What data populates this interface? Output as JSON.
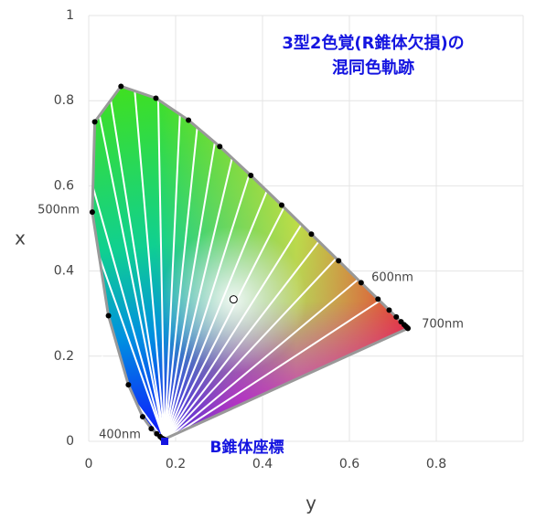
{
  "chart_data": {
    "type": "chromaticity",
    "title_lines": [
      "3型2色覚(R錐体欠損)の",
      "混同色軌跡"
    ],
    "x_label": "y",
    "y_label": "x",
    "xlim": [
      0,
      1
    ],
    "xticks": [
      0,
      0.2,
      0.4,
      0.6,
      0.8
    ],
    "ylim": [
      0,
      1
    ],
    "yticks": [
      0,
      0.2,
      0.4,
      0.6,
      0.8,
      1
    ],
    "grid": true,
    "locus": {
      "color": "#999999",
      "dot_color": "#000000",
      "x": [
        0.1733,
        0.1726,
        0.1714,
        0.1689,
        0.1644,
        0.1566,
        0.144,
        0.1241,
        0.0913,
        0.0454,
        0.0082,
        0.0139,
        0.0743,
        0.1547,
        0.2296,
        0.3016,
        0.3731,
        0.4441,
        0.5125,
        0.5752,
        0.627,
        0.6658,
        0.6915,
        0.7079,
        0.719,
        0.726,
        0.73,
        0.732,
        0.7334,
        0.7344,
        0.7347
      ],
      "y": [
        0.0048,
        0.0048,
        0.0051,
        0.0069,
        0.0109,
        0.0177,
        0.0297,
        0.0578,
        0.1327,
        0.295,
        0.5384,
        0.7502,
        0.8338,
        0.8059,
        0.7543,
        0.6923,
        0.6245,
        0.5547,
        0.4866,
        0.4242,
        0.3725,
        0.334,
        0.3083,
        0.292,
        0.2809,
        0.274,
        0.27,
        0.268,
        0.2666,
        0.2656,
        0.2653
      ]
    },
    "confusion_lines": {
      "color": "#ffffff",
      "x": [
        0.03,
        0.012,
        0.009,
        0.022,
        0.048,
        0.105,
        0.16,
        0.21,
        0.25,
        0.29,
        0.33,
        0.37,
        0.41,
        0.45,
        0.49,
        0.53,
        0.57,
        0.62,
        0.67,
        0.735
      ],
      "y": [
        0.2,
        0.47,
        0.6,
        0.78,
        0.82,
        0.835,
        0.8,
        0.77,
        0.74,
        0.7,
        0.665,
        0.628,
        0.588,
        0.55,
        0.51,
        0.47,
        0.43,
        0.38,
        0.33,
        0.265
      ]
    },
    "white_point": {
      "x": 0.3333,
      "y": 0.3333
    },
    "convergence": {
      "x": 0.1748,
      "y": 0.0,
      "color": "#1515e0",
      "label": "B錐体座標"
    },
    "wavelength_labels": [
      "400nm",
      "500nm",
      "600nm",
      "700nm"
    ]
  }
}
